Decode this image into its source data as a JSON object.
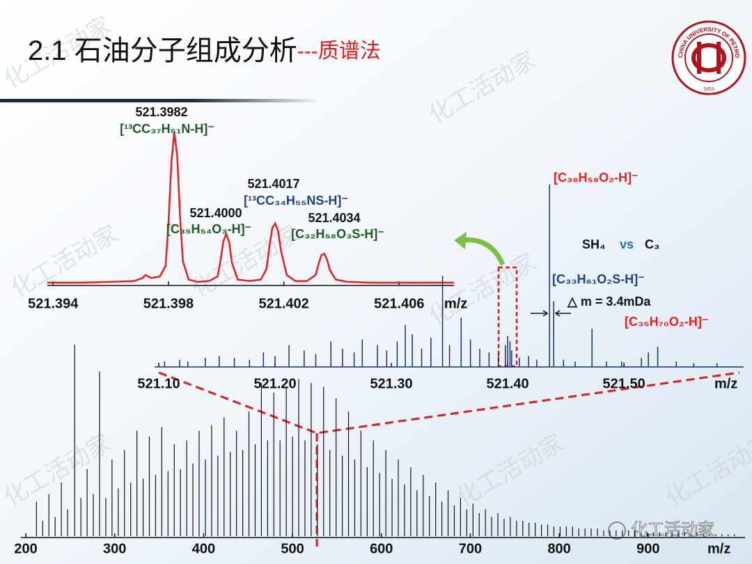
{
  "slide": {
    "title": "2.1 石油分子组成分析",
    "subtitle": "---质谱法",
    "logo_text": "CHINA UNIVERSITY OF PETROLEUM",
    "logo_year": "1953",
    "watermark": "化工活动家"
  },
  "chart_data": [
    {
      "type": "line",
      "color": "#ee1c1c",
      "xlabel": "m/z",
      "xlim": [
        521.3938,
        521.4079
      ],
      "ylim": [
        0,
        100
      ],
      "xticks": [
        521.394,
        521.398,
        521.402,
        521.406
      ],
      "x": [
        521.3938,
        521.395,
        521.396,
        521.3968,
        521.3971,
        521.3972,
        521.3974,
        521.3977,
        521.3979,
        521.398,
        521.3981,
        521.3982,
        521.3983,
        521.3984,
        521.3985,
        521.3987,
        521.399,
        521.3994,
        521.3997,
        521.3998,
        521.3999,
        521.4,
        521.4001,
        521.4002,
        521.4004,
        521.4008,
        521.4012,
        521.4014,
        521.4015,
        521.4016,
        521.4017,
        521.4018,
        521.4019,
        521.4021,
        521.4024,
        521.4028,
        521.4031,
        521.4032,
        521.4033,
        521.4034,
        521.4035,
        521.4036,
        521.4038,
        521.4042,
        521.405,
        521.406,
        521.407,
        521.4079
      ],
      "values": [
        1,
        1,
        1.5,
        2,
        4,
        6,
        4,
        5,
        12,
        40,
        80,
        100,
        85,
        45,
        15,
        3,
        1.5,
        2,
        5,
        15,
        28,
        33,
        28,
        14,
        3,
        2,
        3,
        10,
        25,
        37,
        40,
        35,
        22,
        6,
        2,
        2,
        6,
        13,
        19,
        20,
        16,
        9,
        3,
        1.5,
        1,
        1,
        1,
        1
      ],
      "annotations": [
        {
          "text": "521.3982",
          "color": "#111111"
        },
        {
          "text": "[¹³CC₃₇H₅₁N-H]⁻",
          "color": "#1e5a1e"
        },
        {
          "text": "521.4000",
          "color": "#111111"
        },
        {
          "text": "[C₃₅H₅₄O₃-H]⁻",
          "color": "#1e5a1e"
        },
        {
          "text": "521.4017",
          "color": "#111111"
        },
        {
          "text": "[¹³CC₃₄H₅₅NS-H]⁻",
          "color": "#1f3f8f"
        },
        {
          "text": "521.4034",
          "color": "#111111"
        },
        {
          "text": "[C₃₂H₅₈O₃S-H]⁻",
          "color": "#1e5a1e"
        }
      ]
    },
    {
      "type": "stick",
      "color": "#1a2f6e",
      "xlabel": "m/z",
      "xlim": [
        521.0964,
        521.6029
      ],
      "ylim": [
        0,
        100
      ],
      "xticks": [
        {
          "value": 521.1,
          "label": "521.10"
        },
        {
          "value": 521.2,
          "label": "521.20"
        },
        {
          "value": 521.3,
          "label": "521.30"
        },
        {
          "value": 521.4,
          "label": "521.40"
        },
        {
          "value": 521.5,
          "label": "521.50"
        }
      ],
      "x": [
        521.105,
        521.118,
        521.125,
        521.14,
        521.152,
        521.165,
        521.178,
        521.19,
        521.2,
        521.212,
        521.225,
        521.235,
        521.248,
        521.258,
        521.268,
        521.275,
        521.288,
        521.296,
        521.305,
        521.312,
        521.318,
        521.326,
        521.334,
        521.344,
        521.35,
        521.36,
        521.368,
        521.376,
        521.384,
        521.392,
        521.398,
        521.4,
        521.402,
        521.4034,
        521.41,
        521.418,
        521.425,
        521.436,
        521.4396,
        521.448,
        521.458,
        521.4725,
        521.485,
        521.498,
        521.515,
        521.521,
        521.529,
        521.545,
        521.56,
        521.58
      ],
      "values": [
        3,
        4,
        3,
        5,
        6,
        5,
        4,
        8,
        6,
        12,
        9,
        7,
        14,
        10,
        8,
        15,
        12,
        9,
        14,
        23,
        18,
        10,
        16,
        50,
        12,
        27,
        15,
        10,
        8,
        7,
        12,
        17,
        14,
        9,
        5,
        6,
        4,
        100,
        36,
        4,
        3,
        21,
        3,
        3,
        5,
        8,
        11,
        3,
        2,
        2
      ],
      "annotations": [
        {
          "text": "[C₃₆H₅₈O₂-H]⁻",
          "color": "#ee1c1c"
        },
        {
          "text": "SH₄",
          "color": "#111111"
        },
        {
          "text": "vs",
          "color": "#1f6fd0"
        },
        {
          "text": "C₃",
          "color": "#111111"
        },
        {
          "text": "[C₃₃H₆₁O₂S-H]⁻",
          "color": "#1f3f8f"
        },
        {
          "text": "△ m = 3.4mDa",
          "color": "#111111"
        },
        {
          "text": "[C₃₅H₇₀O₂-H]⁻",
          "color": "#ee1c1c"
        }
      ]
    },
    {
      "type": "stick",
      "color": "#111111",
      "xlabel": "m/z",
      "xlim": [
        194.5,
        1009
      ],
      "ylim": [
        0,
        100
      ],
      "xticks": [
        200,
        300,
        400,
        500,
        600,
        700,
        800,
        900
      ],
      "x": [
        212,
        219,
        226,
        233,
        240,
        247,
        255,
        262,
        269,
        276,
        283,
        290,
        297,
        304,
        311,
        318,
        325,
        332,
        339,
        346,
        353,
        360,
        367,
        374,
        381,
        388,
        395,
        402,
        409,
        416,
        423,
        430,
        437,
        444,
        451,
        458,
        465,
        472,
        479,
        486,
        493,
        500,
        507,
        514,
        521,
        528,
        535,
        542,
        549,
        556,
        563,
        570,
        577,
        584,
        591,
        598,
        605,
        612,
        619,
        626,
        633,
        640,
        647,
        654,
        661,
        668,
        675,
        682,
        689,
        696,
        703,
        710,
        717,
        724,
        731,
        738,
        745,
        752,
        759,
        766,
        773,
        780,
        787,
        794,
        801,
        808,
        815,
        822,
        829,
        836,
        843,
        850,
        857,
        864,
        871,
        878,
        885,
        892,
        899,
        906,
        913,
        920,
        927,
        934,
        941,
        948,
        955,
        962,
        969,
        976,
        983,
        990,
        997
      ],
      "values": [
        18,
        8,
        22,
        10,
        28,
        14,
        100,
        20,
        35,
        22,
        86,
        20,
        40,
        25,
        45,
        28,
        55,
        30,
        52,
        32,
        57,
        34,
        48,
        35,
        50,
        38,
        55,
        40,
        58,
        42,
        62,
        44,
        55,
        45,
        65,
        48,
        80,
        50,
        75,
        50,
        78,
        52,
        82,
        50,
        80,
        48,
        78,
        45,
        72,
        42,
        65,
        40,
        55,
        36,
        50,
        33,
        45,
        30,
        40,
        27,
        36,
        24,
        32,
        21,
        28,
        18,
        24,
        16,
        20,
        14,
        17,
        12,
        14,
        10,
        12,
        9,
        10,
        8,
        8,
        7,
        7,
        6,
        6,
        5,
        5,
        5,
        5,
        4,
        4,
        4,
        4,
        3,
        3,
        3,
        3,
        3,
        3,
        2,
        2,
        2,
        2,
        2,
        2,
        2,
        2,
        1,
        2,
        1,
        1,
        1,
        1,
        1,
        1
      ],
      "annotations": []
    }
  ]
}
